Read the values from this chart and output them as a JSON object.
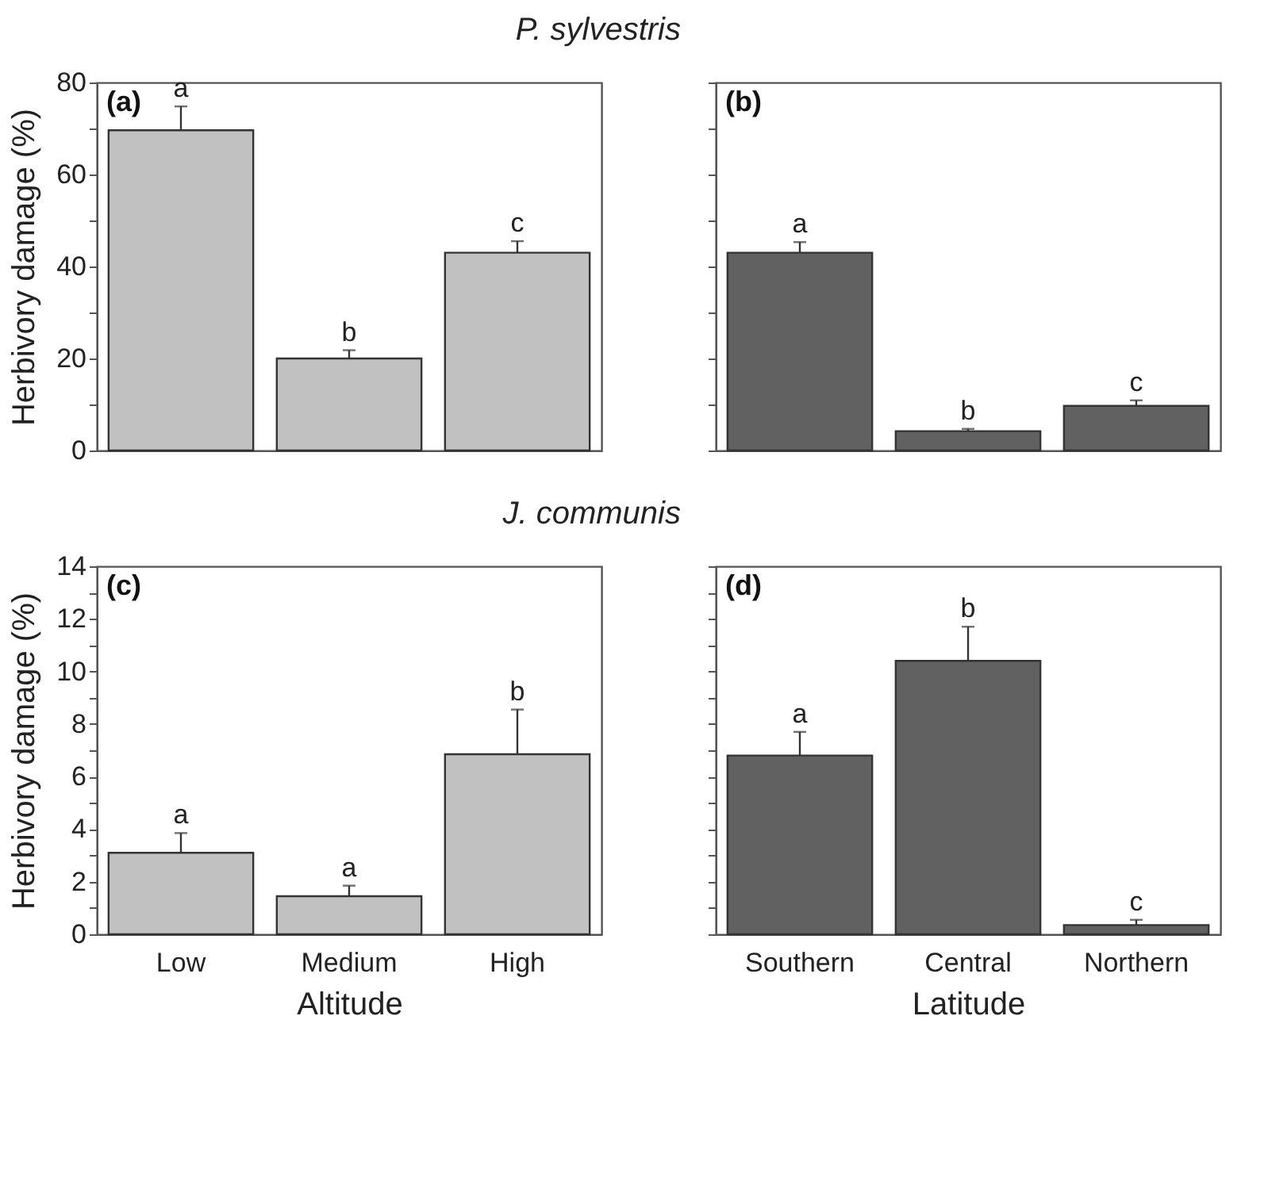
{
  "chart_data": [
    {
      "type": "bar",
      "title": "P. sylvestris",
      "ylabel": "Herbivory damage (%)",
      "categories": [
        "Low",
        "Medium",
        "High"
      ],
      "values": [
        69.6,
        20,
        43
      ],
      "errors": [
        [
          69.6,
          74.8
        ],
        [
          20,
          21.8
        ],
        [
          43,
          45.5
        ]
      ],
      "color": "#c1c1c1",
      "ylim": [
        0,
        80
      ],
      "yticks": [
        0,
        {
          "value": 10,
          "label": null
        },
        20,
        {
          "value": 30,
          "label": null
        },
        40,
        {
          "value": 50,
          "label": null
        },
        60,
        {
          "value": 70,
          "label": null
        },
        80
      ],
      "tick_labels": "y",
      "annotations": [
        "(a)",
        {
          "text": "a",
          "x": "Low",
          "y": 74.8
        },
        {
          "text": "b",
          "x": "Medium",
          "y": 21.8
        },
        {
          "text": "c",
          "x": "High",
          "y": 45.5
        }
      ]
    },
    {
      "type": "bar",
      "categories": [
        "Southern",
        "Central",
        "Northern"
      ],
      "values": [
        43,
        4.2,
        9.7
      ],
      "errors": [
        [
          43,
          45.3
        ],
        [
          4.2,
          4.7
        ],
        [
          9.7,
          10.9
        ]
      ],
      "color": "#616161",
      "ylim": [
        0,
        80
      ],
      "yticks": [
        0,
        10,
        20,
        30,
        40,
        50,
        60,
        70,
        80
      ],
      "tick_labels": false,
      "annotations": [
        "(b)",
        {
          "text": "a",
          "x": "Southern",
          "y": 45.3
        },
        {
          "text": "b",
          "x": "Central",
          "y": 4.7
        },
        {
          "text": "c",
          "x": "Northern",
          "y": 10.9
        }
      ]
    },
    {
      "type": "bar",
      "title": "J. communis",
      "ylabel": "Herbivory damage (%)",
      "xlabel": "Altitude",
      "categories": [
        "Low",
        "Medium",
        "High"
      ],
      "values": [
        3.1,
        1.45,
        6.85
      ],
      "errors": [
        [
          3.1,
          3.85
        ],
        [
          1.45,
          1.85
        ],
        [
          6.85,
          8.55
        ]
      ],
      "color": "#c1c1c1",
      "ylim": [
        0,
        14
      ],
      "yticks": [
        0,
        {
          "value": 1,
          "label": null
        },
        2,
        {
          "value": 3,
          "label": null
        },
        4,
        {
          "value": 5,
          "label": null
        },
        6,
        {
          "value": 7,
          "label": null
        },
        8,
        {
          "value": 9,
          "label": null
        },
        10,
        {
          "value": 11,
          "label": null
        },
        12,
        {
          "value": 13,
          "label": null
        },
        14
      ],
      "annotations": [
        "(c)",
        {
          "text": "a",
          "x": "Low",
          "y": 3.85
        },
        {
          "text": "a",
          "x": "Medium",
          "y": 1.85
        },
        {
          "text": "b",
          "x": "High",
          "y": 8.55
        }
      ]
    },
    {
      "type": "bar",
      "xlabel": "Latitude",
      "categories": [
        "Southern",
        "Central",
        "Northern"
      ],
      "values": [
        6.8,
        10.4,
        0.35
      ],
      "errors": [
        [
          6.8,
          7.7
        ],
        [
          10.4,
          11.7
        ],
        [
          0.35,
          0.55
        ]
      ],
      "color": "#616161",
      "ylim": [
        0,
        14
      ],
      "yticks": [
        0,
        1,
        2,
        3,
        4,
        5,
        6,
        7,
        8,
        9,
        10,
        11,
        12,
        13,
        14
      ],
      "tick_labels": "x",
      "annotations": [
        "(d)",
        {
          "text": "a",
          "x": "Southern",
          "y": 7.7
        },
        {
          "text": "b",
          "x": "Central",
          "y": 11.7
        },
        {
          "text": "c",
          "x": "Northern",
          "y": 0.55
        }
      ]
    }
  ]
}
